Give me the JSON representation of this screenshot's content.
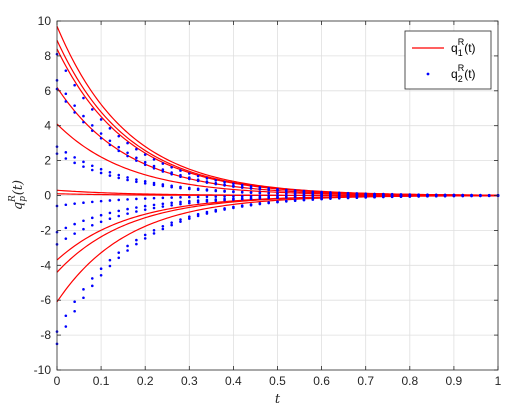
{
  "chart_data": {
    "type": "line",
    "title": "",
    "xlabel": "t",
    "ylabel_main": "q",
    "ylabel_sub": "p",
    "ylabel_sup": "R",
    "ylabel_arg": "(t)",
    "xlim": [
      0,
      1
    ],
    "ylim": [
      -10,
      10
    ],
    "grid": true,
    "legend_position": "top-right",
    "x_ticks": [
      0,
      0.1,
      0.2,
      0.3,
      0.4,
      0.5,
      0.6,
      0.7,
      0.8,
      0.9,
      1
    ],
    "x_tick_labels": [
      "0",
      "0.1",
      "0.2",
      "0.3",
      "0.4",
      "0.5",
      "0.6",
      "0.7",
      "0.8",
      "0.9",
      "1"
    ],
    "y_ticks": [
      -10,
      -8,
      -6,
      -4,
      -2,
      0,
      2,
      4,
      6,
      8,
      10
    ],
    "y_tick_labels": [
      "-10",
      "-8",
      "-6",
      "-4",
      "-2",
      "0",
      "2",
      "4",
      "6",
      "8",
      "10"
    ],
    "decay_rate": 6.2,
    "series": [
      {
        "name": "q1R(t)",
        "legend": {
          "base": "q",
          "sub": "1",
          "sup": "R",
          "arg": "(t)"
        },
        "style": "solid",
        "color": "#ff0000",
        "initial_values": [
          9.7,
          8.9,
          8.4,
          6.2,
          4.1,
          0.3,
          0.1,
          -3.7,
          -4.4,
          -6.1
        ]
      },
      {
        "name": "q2R(t)",
        "legend": {
          "base": "q",
          "sub": "2",
          "sup": "R",
          "arg": "(t)"
        },
        "style": "dotted",
        "color": "#0000ff",
        "initial_values": [
          8.1,
          6.6,
          6.1,
          2.8,
          2.4,
          -0.6,
          -2.1,
          -2.8,
          -7.8,
          -8.5
        ]
      }
    ]
  }
}
